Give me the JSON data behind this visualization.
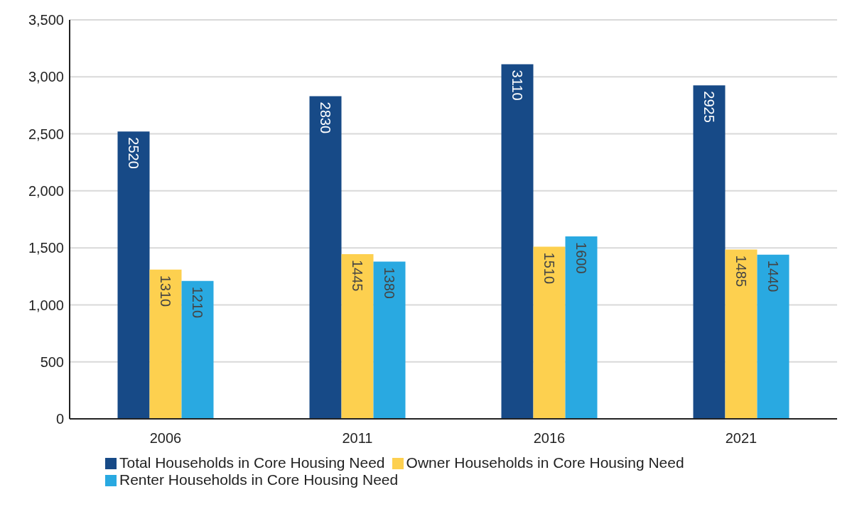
{
  "chart_data": {
    "type": "bar",
    "categories": [
      "2006",
      "2011",
      "2016",
      "2021"
    ],
    "series": [
      {
        "name": "Total Households in Core Housing Need",
        "color": "#174a87",
        "values": [
          2520,
          2830,
          3110,
          2925
        ]
      },
      {
        "name": "Owner Households in Core Housing Need",
        "color": "#fdd04f",
        "values": [
          1310,
          1445,
          1510,
          1485
        ]
      },
      {
        "name": "Renter Households in Core Housing Need",
        "color": "#29a9e1",
        "values": [
          1210,
          1380,
          1600,
          1440
        ]
      }
    ],
    "ylim": [
      0,
      3500
    ],
    "yticks": [
      0,
      500,
      {
        "value": 1000,
        "label": "1,000"
      },
      {
        "value": 1500,
        "label": "1,500"
      },
      {
        "value": 2000,
        "label": "2,000"
      },
      {
        "value": 2500,
        "label": "2,500"
      },
      {
        "value": 3000,
        "label": "3,000"
      },
      {
        "value": 3500,
        "label": "3,500"
      }
    ],
    "grid": "y",
    "legend": "bottom",
    "data_labels": true
  }
}
